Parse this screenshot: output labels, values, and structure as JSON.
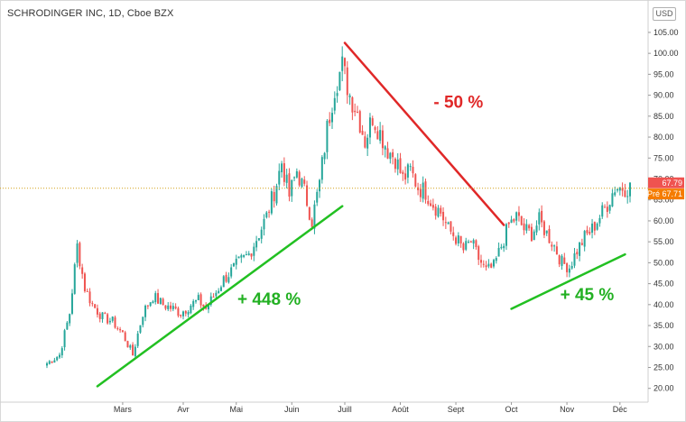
{
  "window": {
    "title": "SCHRODINGER INC, 1D, Cboe BZX",
    "currency_badge": "USD"
  },
  "chart_data": {
    "type": "candlestick",
    "title": "SCHRODINGER INC, 1D, Cboe BZX",
    "ylim": [
      18,
      108
    ],
    "y_ticks": [
      "20.00",
      "25.00",
      "30.00",
      "35.00",
      "40.00",
      "45.00",
      "50.00",
      "55.00",
      "60.00",
      "65.00",
      "70.00",
      "75.00",
      "80.00",
      "85.00",
      "90.00",
      "95.00",
      "100.00",
      "105.00"
    ],
    "y_tick_values": [
      20,
      25,
      30,
      35,
      40,
      45,
      50,
      55,
      60,
      65,
      70,
      75,
      80,
      85,
      90,
      95,
      100,
      105
    ],
    "x_ticks": [
      "Mars",
      "Avr",
      "Mai",
      "Juin",
      "Juill",
      "Août",
      "Sept",
      "Oct",
      "Nov",
      "Déc"
    ],
    "x_tick_index": [
      30,
      54,
      75,
      97,
      118,
      140,
      162,
      184,
      206,
      227
    ],
    "n_days": 232,
    "trend_lines": [
      {
        "name": "uptrend-1",
        "color": "#22c022",
        "from": [
          20,
          20.5
        ],
        "to": [
          117,
          63.5
        ]
      },
      {
        "name": "downtrend",
        "color": "#e02828",
        "from": [
          118,
          102.5
        ],
        "to": [
          181,
          59
        ]
      },
      {
        "name": "uptrend-2",
        "color": "#22c022",
        "from": [
          184,
          39
        ],
        "to": [
          229,
          52
        ]
      }
    ],
    "annotations": [
      {
        "text": "+ 448 %",
        "color": "#22b022",
        "at": [
          88,
          40
        ]
      },
      {
        "text": "- 50 %",
        "color": "#e02828",
        "at": [
          163,
          87
        ]
      },
      {
        "text": "+ 45 %",
        "color": "#22b022",
        "at": [
          214,
          41
        ]
      }
    ],
    "price_tags": [
      {
        "text": "67.79",
        "value": 67.79,
        "color": "#ef5350"
      },
      {
        "text": "Pré 67.71",
        "value": 67.71,
        "color": "#f57c00"
      }
    ],
    "anchors": [
      [
        0,
        26
      ],
      [
        5,
        28
      ],
      [
        9,
        38
      ],
      [
        12,
        54
      ],
      [
        15,
        44
      ],
      [
        18,
        40
      ],
      [
        22,
        37
      ],
      [
        26,
        36
      ],
      [
        30,
        33
      ],
      [
        34,
        28
      ],
      [
        38,
        38
      ],
      [
        42,
        42
      ],
      [
        46,
        40
      ],
      [
        50,
        39
      ],
      [
        53,
        38
      ],
      [
        57,
        40
      ],
      [
        60,
        41
      ],
      [
        63,
        39
      ],
      [
        66,
        42
      ],
      [
        70,
        46
      ],
      [
        73,
        48
      ],
      [
        76,
        50
      ],
      [
        80,
        52
      ],
      [
        84,
        57
      ],
      [
        87,
        61
      ],
      [
        91,
        69
      ],
      [
        93,
        74
      ],
      [
        96,
        66
      ],
      [
        99,
        72
      ],
      [
        102,
        67
      ],
      [
        105,
        60
      ],
      [
        108,
        69
      ],
      [
        111,
        82
      ],
      [
        114,
        92
      ],
      [
        117,
        97
      ],
      [
        120,
        90
      ],
      [
        123,
        86
      ],
      [
        126,
        79
      ],
      [
        129,
        85
      ],
      [
        132,
        81
      ],
      [
        135,
        77
      ],
      [
        138,
        75
      ],
      [
        141,
        70
      ],
      [
        144,
        72
      ],
      [
        147,
        68
      ],
      [
        150,
        67
      ],
      [
        153,
        64
      ],
      [
        156,
        62
      ],
      [
        159,
        58
      ],
      [
        162,
        56
      ],
      [
        165,
        53
      ],
      [
        168,
        55
      ],
      [
        171,
        51
      ],
      [
        174,
        48
      ],
      [
        177,
        49
      ],
      [
        180,
        54
      ],
      [
        183,
        59
      ],
      [
        186,
        61
      ],
      [
        189,
        58
      ],
      [
        192,
        57
      ],
      [
        195,
        60
      ],
      [
        198,
        57
      ],
      [
        201,
        54
      ],
      [
        204,
        50
      ],
      [
        207,
        49
      ],
      [
        210,
        53
      ],
      [
        213,
        56
      ],
      [
        216,
        58
      ],
      [
        219,
        61
      ],
      [
        222,
        64
      ],
      [
        225,
        68
      ],
      [
        229,
        68
      ]
    ]
  }
}
